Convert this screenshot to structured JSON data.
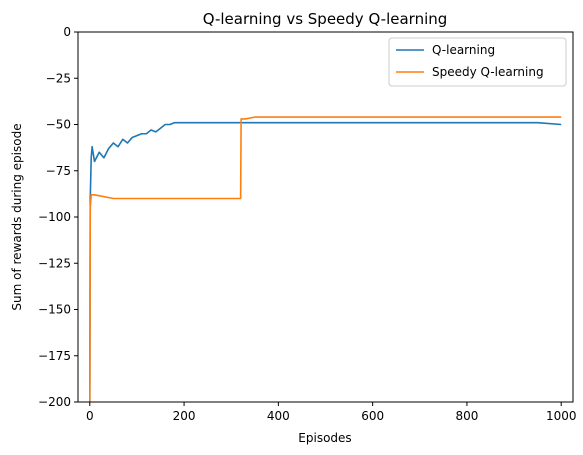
{
  "chart_data": {
    "type": "line",
    "title": "Q-learning vs Speedy Q-learning",
    "xlabel": "Episodes",
    "ylabel": "Sum of rewards during episode",
    "xlim": [
      -25,
      1025
    ],
    "ylim": [
      -200,
      0
    ],
    "xticks": [
      0,
      200,
      400,
      600,
      800,
      1000
    ],
    "yticks": [
      0,
      -25,
      -50,
      -75,
      -100,
      -125,
      -150,
      -175,
      -200
    ],
    "xtick_labels": [
      "0",
      "200",
      "400",
      "600",
      "800",
      "1000"
    ],
    "ytick_labels": [
      "0",
      "−25",
      "−50",
      "−75",
      "−100",
      "−125",
      "−150",
      "−175",
      "−200"
    ],
    "grid": false,
    "legend_position": "top-right",
    "series": [
      {
        "name": "Q-learning",
        "color": "#1f77b4",
        "x": [
          0,
          1,
          3,
          5,
          10,
          20,
          30,
          40,
          50,
          60,
          70,
          80,
          90,
          100,
          110,
          120,
          130,
          140,
          150,
          160,
          170,
          180,
          190,
          200,
          220,
          240,
          260,
          280,
          300,
          320,
          340,
          360,
          380,
          400,
          450,
          500,
          550,
          600,
          650,
          700,
          750,
          800,
          850,
          900,
          950,
          1000
        ],
        "y": [
          -200,
          -90,
          -68,
          -62,
          -70,
          -65,
          -68,
          -63,
          -60,
          -62,
          -58,
          -60,
          -57,
          -56,
          -55,
          -55,
          -53,
          -54,
          -52,
          -50,
          -50,
          -49,
          -49,
          -49,
          -49,
          -49,
          -49,
          -49,
          -49,
          -49,
          -49,
          -49,
          -49,
          -49,
          -49,
          -49,
          -49,
          -49,
          -49,
          -49,
          -49,
          -49,
          -49,
          -49,
          -49,
          -50
        ]
      },
      {
        "name": "Speedy Q-learning",
        "color": "#ff7f0e",
        "x": [
          0,
          1,
          3,
          10,
          50,
          100,
          150,
          200,
          250,
          300,
          320,
          321,
          330,
          350,
          400,
          450,
          500,
          550,
          600,
          650,
          700,
          750,
          800,
          850,
          900,
          950,
          1000
        ],
        "y": [
          -200,
          -95,
          -88,
          -88,
          -90,
          -90,
          -90,
          -90,
          -90,
          -90,
          -90,
          -47,
          -47,
          -46,
          -46,
          -46,
          -46,
          -46,
          -46,
          -46,
          -46,
          -46,
          -46,
          -46,
          -46,
          -46,
          -46
        ]
      }
    ]
  }
}
